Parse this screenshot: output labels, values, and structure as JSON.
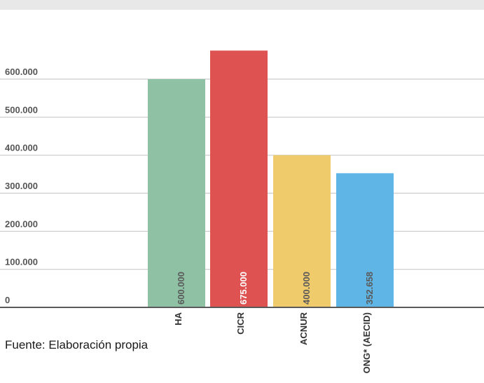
{
  "chart_data": {
    "type": "bar",
    "categories": [
      "HA",
      "CICR",
      "ACNUR",
      "ONG* (AECID)"
    ],
    "values": [
      600000,
      675000,
      400000,
      352658
    ],
    "value_labels": [
      "600.000",
      "675.000",
      "400.000",
      "352.658"
    ],
    "colors": [
      "#8fc1a5",
      "#de5252",
      "#f0cb6c",
      "#5fb6e6"
    ],
    "y_ticks": [
      0,
      100000,
      200000,
      300000,
      400000,
      500000,
      600000
    ],
    "y_tick_labels": [
      "0",
      "100.000",
      "200.000",
      "300.000",
      "400.000",
      "500.000",
      "600.000"
    ],
    "ylim": [
      0,
      675000
    ],
    "grid": true,
    "legend": "none"
  },
  "source_note": "Fuente: Elaboración propia"
}
